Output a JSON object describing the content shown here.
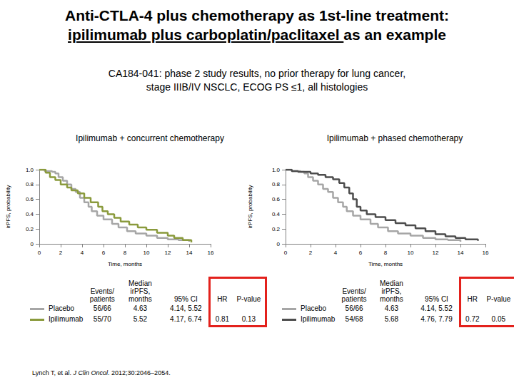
{
  "title": {
    "lines": [
      [
        {
          "text": "Anti-CTLA-4 plus chemotherapy as 1st-line treatment:"
        }
      ],
      [
        {
          "text": "ipilimumab plus carboplatin/paclitaxel ",
          "underline": true
        },
        {
          "text": "as an example"
        }
      ]
    ]
  },
  "subtitle": {
    "lines": [
      "CA184-041: phase 2 study results, no prior therapy for lung cancer,",
      "stage IIIB/IV NSCLC, ECOG PS ≤1, all histologies"
    ]
  },
  "chart_data": [
    {
      "type": "step",
      "title": "Ipilimumab + concurrent chemotherapy",
      "x_label": "Time, months",
      "y_label": "irPFS, probability",
      "xlim": [
        0,
        16
      ],
      "xticks": [
        0,
        2,
        4,
        6,
        8,
        10,
        12,
        14,
        16
      ],
      "ylim": [
        0,
        1
      ],
      "yticks": [
        0,
        0.2,
        0.4,
        0.6,
        0.8,
        {
          "value": 1,
          "label": "1.0"
        }
      ],
      "grid": false,
      "series": [
        {
          "name": "Placebo",
          "color": "#a6a6a6",
          "x": [
            0,
            0.5,
            1.2,
            1.5,
            1.8,
            2.2,
            2.6,
            3.0,
            3.4,
            3.8,
            4.2,
            4.6,
            4.9,
            5.4,
            6.0,
            6.8,
            7.4,
            8.2,
            9.0,
            10.0,
            11.0,
            12.0,
            13.0,
            14.0
          ],
          "values": [
            1.0,
            0.98,
            0.97,
            0.95,
            0.9,
            0.85,
            0.8,
            0.74,
            0.7,
            0.62,
            0.56,
            0.5,
            0.44,
            0.38,
            0.33,
            0.27,
            0.22,
            0.17,
            0.14,
            0.11,
            0.08,
            0.06,
            0.05,
            0.03
          ]
        },
        {
          "name": "Ipilimumab",
          "color": "#8a9a3c",
          "x": [
            0,
            0.6,
            1.0,
            1.5,
            2.0,
            2.6,
            3.0,
            3.6,
            4.2,
            4.8,
            5.5,
            5.9,
            6.4,
            7.0,
            7.6,
            8.4,
            9.2,
            10.0,
            11.0,
            12.0,
            12.6,
            13.4,
            14.2
          ],
          "values": [
            1.0,
            0.96,
            0.9,
            0.86,
            0.8,
            0.76,
            0.72,
            0.68,
            0.62,
            0.56,
            0.5,
            0.44,
            0.4,
            0.35,
            0.3,
            0.26,
            0.22,
            0.19,
            0.15,
            0.11,
            0.08,
            0.05,
            0.02
          ]
        }
      ]
    },
    {
      "type": "step",
      "title": "Ipilimumab + phased chemotherapy",
      "x_label": "Time, months",
      "y_label": "irPFS, probability",
      "xlim": [
        0,
        16
      ],
      "xticks": [
        0,
        2,
        4,
        6,
        8,
        10,
        12,
        14,
        16
      ],
      "ylim": [
        0,
        1
      ],
      "yticks": [
        0,
        0.2,
        0.4,
        0.6,
        0.8,
        {
          "value": 1,
          "label": "1.0"
        }
      ],
      "grid": false,
      "series": [
        {
          "name": "Placebo",
          "color": "#a6a6a6",
          "x": [
            0,
            0.5,
            1.2,
            1.5,
            1.8,
            2.2,
            2.6,
            3.0,
            3.4,
            3.8,
            4.2,
            4.6,
            4.9,
            5.4,
            6.0,
            6.8,
            7.4,
            8.2,
            9.0,
            10.0,
            11.0,
            12.0,
            13.0,
            14.0
          ],
          "values": [
            1.0,
            0.98,
            0.97,
            0.95,
            0.9,
            0.85,
            0.8,
            0.74,
            0.7,
            0.62,
            0.56,
            0.5,
            0.44,
            0.38,
            0.33,
            0.27,
            0.22,
            0.17,
            0.14,
            0.11,
            0.08,
            0.06,
            0.05,
            0.03
          ]
        },
        {
          "name": "Ipilimumab",
          "color": "#4d4d4d",
          "x": [
            0,
            0.5,
            1.0,
            2.0,
            2.6,
            3.2,
            3.8,
            4.3,
            4.7,
            5.1,
            5.4,
            5.7,
            6.0,
            6.5,
            7.2,
            8.0,
            8.8,
            9.6,
            10.4,
            11.2,
            12.0,
            12.8,
            13.6,
            14.4,
            15.4
          ],
          "values": [
            1.0,
            0.98,
            0.97,
            0.95,
            0.93,
            0.9,
            0.87,
            0.82,
            0.76,
            0.68,
            0.6,
            0.5,
            0.45,
            0.4,
            0.36,
            0.32,
            0.28,
            0.25,
            0.21,
            0.17,
            0.13,
            0.1,
            0.08,
            0.06,
            0.04
          ]
        }
      ]
    }
  ],
  "tables": [
    {
      "columns": [
        [
          "Events/",
          "patients"
        ],
        [
          "Median",
          "irPFS,",
          "months"
        ],
        [
          "95% CI"
        ],
        [
          "HR"
        ],
        [
          "P-value"
        ]
      ],
      "rows": [
        [
          "Placebo",
          "56/66",
          "4.63",
          "4.14, 5.52",
          null,
          null
        ],
        [
          "Ipilimumab",
          "55/70",
          "5.52",
          "4.17, 6.74",
          "0.81",
          "0.13"
        ]
      ]
    },
    {
      "columns": [
        [
          "Events/",
          "patients"
        ],
        [
          "Median",
          "irPFS,",
          "months"
        ],
        [
          "95% CI"
        ],
        [
          "HR"
        ],
        [
          "P-value"
        ]
      ],
      "rows": [
        [
          "Placebo",
          "56/66",
          "4.63",
          "4.14, 5.52",
          null,
          null
        ],
        [
          "Ipilimumab",
          "54/68",
          "5.68",
          "4.76, 7.79",
          "0.72",
          "0.05"
        ]
      ]
    }
  ],
  "citation": [
    {
      "text": "Lynch T, et al. "
    },
    {
      "text": "J Clin Oncol",
      "italic": true
    },
    {
      "text": ". 2012;30:2046–2054."
    }
  ]
}
